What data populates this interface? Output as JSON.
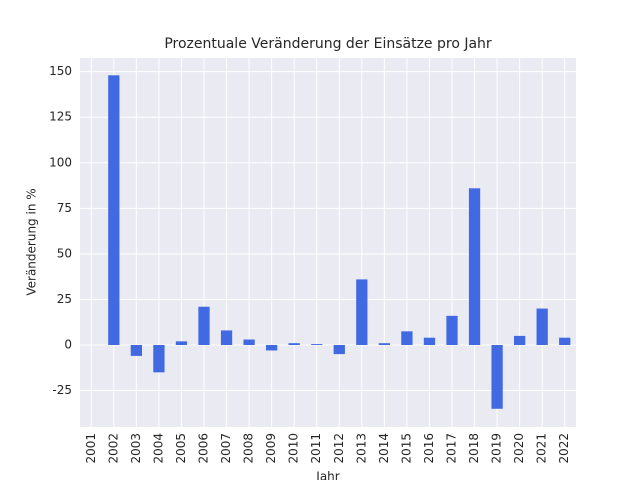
{
  "chart_data": {
    "type": "bar",
    "title": "Prozentuale Veränderung der Einsätze pro Jahr",
    "x_label": "Jahr",
    "y_label": "Veränderung in %",
    "categories": [
      "2001",
      "2002",
      "2003",
      "2004",
      "2005",
      "2006",
      "2007",
      "2008",
      "2009",
      "2010",
      "2011",
      "2012",
      "2013",
      "2014",
      "2015",
      "2016",
      "2017",
      "2018",
      "2019",
      "2020",
      "2021",
      "2022"
    ],
    "values": [
      null,
      148,
      -6,
      -15,
      2,
      21,
      8,
      3,
      -3,
      1,
      0.5,
      -5,
      36,
      1,
      7.5,
      4,
      16,
      86,
      -35,
      5,
      20,
      4
    ],
    "color": "#4169e1",
    "ylim": [
      -45,
      157.5
    ],
    "yticks": [
      -25,
      0,
      25,
      50,
      75,
      100,
      125,
      150
    ],
    "grid": true
  }
}
